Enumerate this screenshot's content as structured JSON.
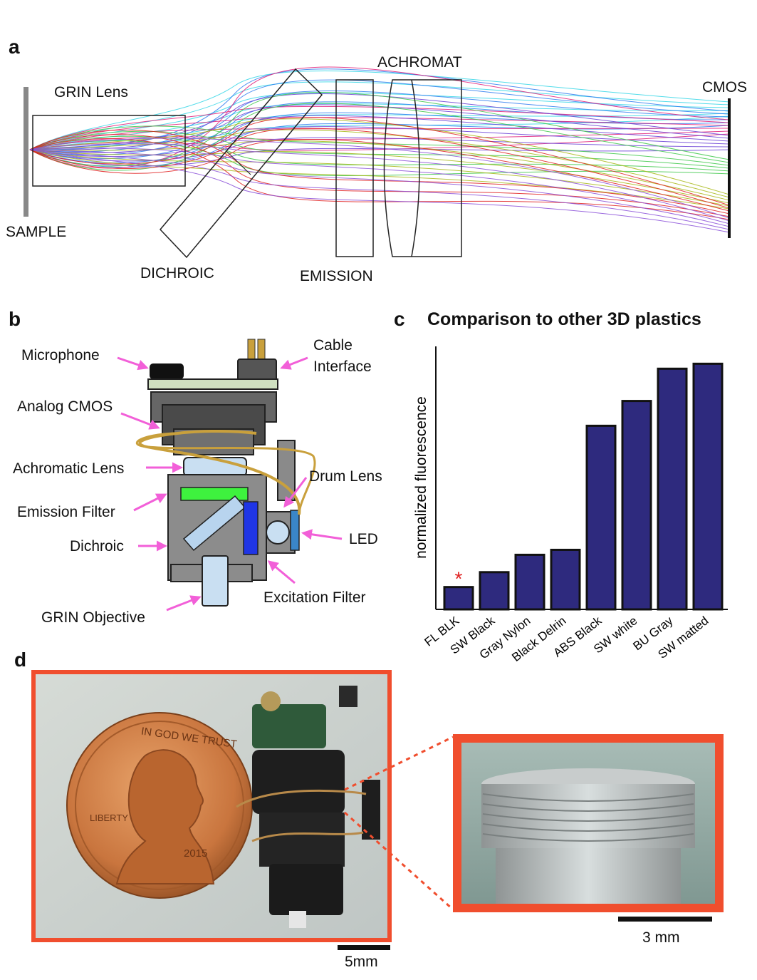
{
  "panels": {
    "a": {
      "letter": "a",
      "labels": {
        "grin_lens": "GRIN Lens",
        "sample": "SAMPLE",
        "dichroic": "DICHROIC",
        "emission": "EMISSION",
        "achromat": "ACHROMAT",
        "cmos": "CMOS"
      }
    },
    "b": {
      "letter": "b",
      "labels": {
        "microphone": "Microphone",
        "cable_interface_1": "Cable",
        "cable_interface_2": "Interface",
        "analog_cmos": "Analog CMOS",
        "achromatic_lens": "Achromatic Lens",
        "drum_lens": "Drum Lens",
        "emission_filter": "Emission Filter",
        "led": "LED",
        "dichroic": "Dichroic",
        "excitation_filter": "Excitation Filter",
        "grin_objective": "GRIN Objective"
      },
      "colors": {
        "arrow": "#f25fd8",
        "wire": "#c9a03c",
        "body": "#808080",
        "emission_filter": "#3ef23e",
        "dichroic": "#b8d4ee",
        "excitation_filter": "#1f35e6",
        "led": "#3a86c8"
      }
    },
    "c": {
      "letter": "c"
    },
    "d": {
      "letter": "d",
      "photo_left": {
        "coin_text_top": "IN GOD WE TRUST",
        "coin_text_left": "LIBERTY",
        "coin_year": "2015"
      },
      "scale_left": "5mm",
      "scale_right": "3 mm",
      "colors": {
        "frame": "#f04e2e"
      }
    }
  },
  "chart_data": {
    "type": "bar",
    "title": "Comparison to other 3D plastics",
    "ylabel": "normalized fluorescence",
    "xlabel": "",
    "categories": [
      "FL BLK",
      "SW Black",
      "Gray Nylon",
      "Black Delrin",
      "ABS Black",
      "SW white",
      "BU Gray",
      "SW matted"
    ],
    "values": [
      0.09,
      0.15,
      0.22,
      0.24,
      0.74,
      0.84,
      0.97,
      0.99
    ],
    "ylim": [
      0,
      1.06
    ],
    "bar_color": "#2e2a7e",
    "marked_category": "FL BLK",
    "marker": "*",
    "marker_color": "#e02020"
  }
}
